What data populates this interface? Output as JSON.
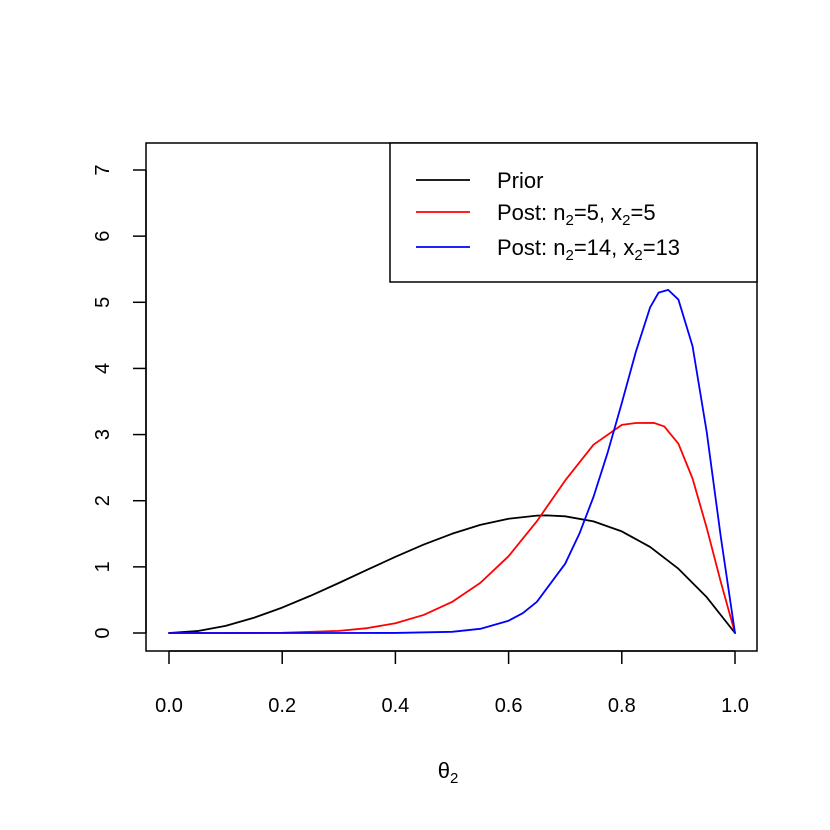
{
  "chart_data": {
    "type": "line",
    "title": "",
    "xlabel": "θ",
    "xlabel_subscript": "2",
    "ylabel": "",
    "xlim": [
      0.0,
      1.0
    ],
    "ylim": [
      0,
      7
    ],
    "x_ticks": [
      "0.0",
      "0.2",
      "0.4",
      "0.6",
      "0.8",
      "1.0"
    ],
    "y_ticks": [
      "0",
      "1",
      "2",
      "3",
      "4",
      "5",
      "6",
      "7"
    ],
    "grid": false,
    "legend_position": "top-right",
    "legend": [
      {
        "key": "prior",
        "color": "#000000",
        "parts": [
          {
            "t": "Prior"
          }
        ]
      },
      {
        "key": "post1",
        "color": "#ff0000",
        "parts": [
          {
            "t": "Post: n"
          },
          {
            "t": "2",
            "sub": true
          },
          {
            "t": "=5, x"
          },
          {
            "t": "2",
            "sub": true
          },
          {
            "t": "=5"
          }
        ]
      },
      {
        "key": "post2",
        "color": "#0000ff",
        "parts": [
          {
            "t": "Post: n"
          },
          {
            "t": "2",
            "sub": true
          },
          {
            "t": "=14, x"
          },
          {
            "t": "2",
            "sub": true
          },
          {
            "t": "=13"
          }
        ]
      }
    ],
    "series": [
      {
        "key": "prior",
        "color": "#000000",
        "x": [
          0.0,
          0.05,
          0.1,
          0.15,
          0.2,
          0.25,
          0.3,
          0.35,
          0.4,
          0.45,
          0.5,
          0.55,
          0.6,
          0.65,
          0.667,
          0.7,
          0.75,
          0.8,
          0.85,
          0.9,
          0.95,
          1.0
        ],
        "y": [
          0.0,
          0.029,
          0.108,
          0.23,
          0.384,
          0.563,
          0.756,
          0.955,
          1.152,
          1.337,
          1.5,
          1.634,
          1.728,
          1.775,
          1.778,
          1.764,
          1.688,
          1.536,
          1.301,
          0.972,
          0.542,
          0.0
        ]
      },
      {
        "key": "post1",
        "color": "#ff0000",
        "x": [
          0.0,
          0.1,
          0.2,
          0.3,
          0.35,
          0.4,
          0.45,
          0.5,
          0.55,
          0.6,
          0.65,
          0.7,
          0.75,
          0.8,
          0.825,
          0.857,
          0.875,
          0.9,
          0.925,
          0.95,
          0.975,
          1.0
        ],
        "y": [
          0.0,
          0.0,
          0.004,
          0.032,
          0.073,
          0.147,
          0.273,
          0.469,
          0.758,
          1.161,
          1.69,
          2.306,
          2.847,
          3.146,
          3.175,
          3.176,
          3.123,
          2.862,
          2.336,
          1.59,
          0.768,
          0.0
        ]
      },
      {
        "key": "post2",
        "color": "#0000ff",
        "x": [
          0.0,
          0.3,
          0.4,
          0.5,
          0.55,
          0.6,
          0.625,
          0.65,
          0.7,
          0.725,
          0.75,
          0.775,
          0.8,
          0.825,
          0.85,
          0.865,
          0.882,
          0.9,
          0.925,
          0.95,
          0.975,
          1.0
        ],
        "y": [
          0.0,
          0.0,
          0.001,
          0.018,
          0.063,
          0.186,
          0.299,
          0.472,
          1.048,
          1.5,
          2.058,
          2.728,
          3.478,
          4.256,
          4.922,
          5.146,
          5.188,
          5.041,
          4.337,
          3.041,
          1.447,
          0.0
        ]
      }
    ]
  }
}
